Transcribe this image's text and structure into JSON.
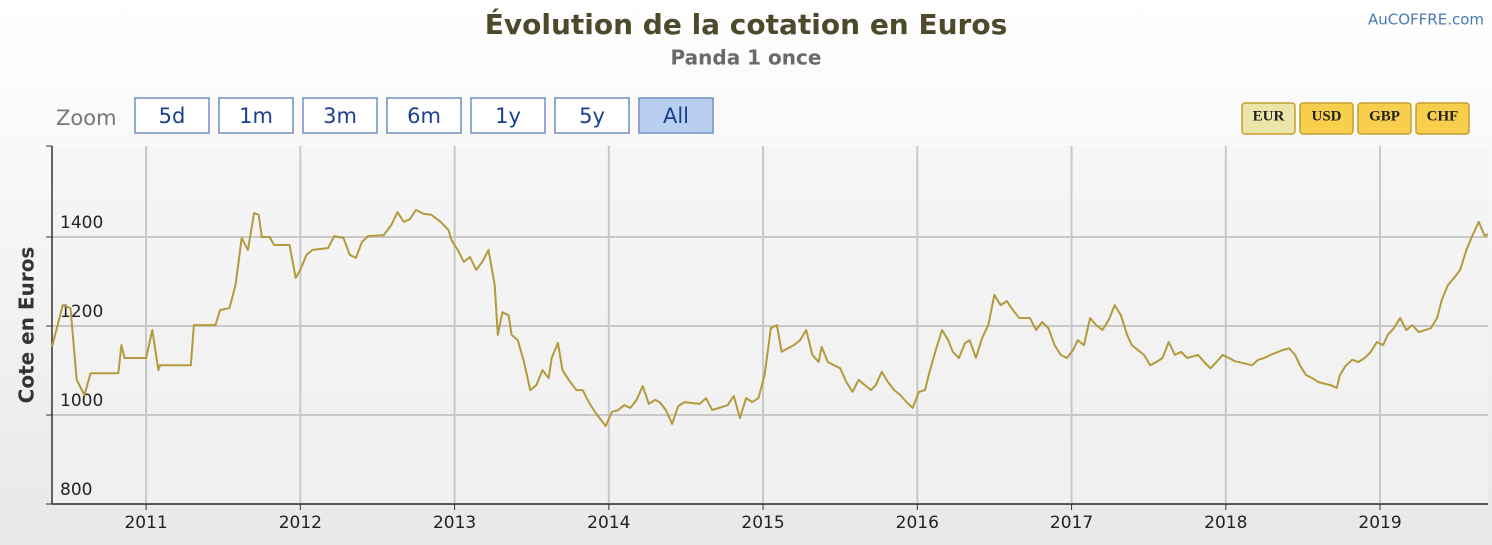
{
  "chart_data": {
    "type": "line",
    "title": "Évolution de la cotation en Euros",
    "subtitle": "Panda 1 once",
    "credit": "AuCOFFRE.com",
    "y_label": "Cote en Euros",
    "color": "#b39a3c",
    "grid": true,
    "range_selector": {
      "label": "Zoom",
      "buttons": [
        "5d",
        "1m",
        "3m",
        "6m",
        "1y",
        "5y",
        "All"
      ],
      "selected": 6
    },
    "currency_buttons": {
      "buttons": [
        "EUR",
        "USD",
        "GBP",
        "CHF"
      ],
      "selected": 0
    },
    "ylim": [
      800,
      1600
    ],
    "yticks": [
      800,
      1000,
      1200,
      1400
    ],
    "xlim": [
      2010.39,
      2019.7
    ],
    "xticks": [
      2011,
      2012,
      2013,
      2014,
      2015,
      2016,
      2017,
      2018,
      2019
    ],
    "x": [
      2010.39,
      2010.46,
      2010.51,
      2010.55,
      2010.6,
      2010.64,
      2010.82,
      2010.84,
      2010.86,
      2011.0,
      2011.04,
      2011.08,
      2011.09,
      2011.29,
      2011.31,
      2011.45,
      2011.48,
      2011.54,
      2011.58,
      2011.62,
      2011.66,
      2011.7,
      2011.73,
      2011.75,
      2011.8,
      2011.83,
      2011.93,
      2011.97,
      2012.0,
      2012.04,
      2012.08,
      2012.18,
      2012.22,
      2012.28,
      2012.32,
      2012.36,
      2012.4,
      2012.44,
      2012.54,
      2012.59,
      2012.63,
      2012.67,
      2012.71,
      2012.75,
      2012.8,
      2012.85,
      2012.91,
      2012.96,
      2012.98,
      2013.02,
      2013.06,
      2013.1,
      2013.14,
      2013.18,
      2013.22,
      2013.26,
      2013.28,
      2013.31,
      2013.35,
      2013.37,
      2013.41,
      2013.45,
      2013.49,
      2013.53,
      2013.57,
      2013.61,
      2013.63,
      2013.67,
      2013.7,
      2013.74,
      2013.79,
      2013.83,
      2013.87,
      2013.91,
      2013.94,
      2013.98,
      2014.02,
      2014.06,
      2014.1,
      2014.14,
      2014.18,
      2014.22,
      2014.26,
      2014.3,
      2014.33,
      2014.37,
      2014.41,
      2014.45,
      2014.49,
      2014.59,
      2014.63,
      2014.67,
      2014.77,
      2014.81,
      2014.85,
      2014.89,
      2014.93,
      2014.97,
      2015.01,
      2015.05,
      2015.09,
      2015.12,
      2015.2,
      2015.24,
      2015.28,
      2015.32,
      2015.36,
      2015.38,
      2015.42,
      2015.5,
      2015.54,
      2015.58,
      2015.62,
      2015.66,
      2015.7,
      2015.73,
      2015.77,
      2015.81,
      2015.85,
      2015.89,
      2015.93,
      2015.97,
      2016.01,
      2016.05,
      2016.08,
      2016.12,
      2016.16,
      2016.2,
      2016.23,
      2016.27,
      2016.31,
      2016.34,
      2016.38,
      2016.42,
      2016.46,
      2016.5,
      2016.54,
      2016.58,
      2016.62,
      2016.66,
      2016.73,
      2016.77,
      2016.81,
      2016.85,
      2016.89,
      2016.93,
      2016.97,
      2017.01,
      2017.04,
      2017.08,
      2017.12,
      2017.16,
      2017.2,
      2017.24,
      2017.28,
      2017.32,
      2017.36,
      2017.39,
      2017.47,
      2017.51,
      2017.55,
      2017.59,
      2017.63,
      2017.67,
      2017.71,
      2017.75,
      2017.82,
      2017.86,
      2017.9,
      2017.94,
      2017.98,
      2018.02,
      2018.06,
      2018.17,
      2018.21,
      2018.25,
      2018.29,
      2018.37,
      2018.41,
      2018.45,
      2018.48,
      2018.52,
      2018.56,
      2018.6,
      2018.68,
      2018.72,
      2018.74,
      2018.78,
      2018.82,
      2018.86,
      2018.9,
      2018.94,
      2018.98,
      2019.02,
      2019.05,
      2019.09,
      2019.13,
      2019.17,
      2019.21,
      2019.25,
      2019.33,
      2019.37,
      2019.4,
      2019.44,
      2019.48,
      2019.52,
      2019.56,
      2019.6,
      2019.64,
      2019.68,
      2019.7
    ],
    "values": [
      1153,
      1247,
      1240,
      1079,
      1045,
      1094,
      1094,
      1157,
      1128,
      1128,
      1191,
      1101,
      1112,
      1112,
      1202,
      1202,
      1236,
      1240,
      1292,
      1398,
      1371,
      1454,
      1450,
      1400,
      1400,
      1382,
      1382,
      1308,
      1326,
      1360,
      1371,
      1375,
      1402,
      1398,
      1360,
      1353,
      1389,
      1402,
      1404,
      1427,
      1456,
      1434,
      1440,
      1461,
      1452,
      1450,
      1434,
      1416,
      1393,
      1371,
      1344,
      1355,
      1326,
      1344,
      1371,
      1292,
      1180,
      1231,
      1224,
      1180,
      1168,
      1119,
      1056,
      1067,
      1101,
      1083,
      1128,
      1162,
      1101,
      1079,
      1056,
      1056,
      1029,
      1007,
      993,
      975,
      1007,
      1011,
      1022,
      1016,
      1034,
      1065,
      1025,
      1034,
      1029,
      1011,
      980,
      1020,
      1029,
      1025,
      1038,
      1011,
      1022,
      1043,
      993,
      1038,
      1029,
      1038,
      1090,
      1195,
      1202,
      1142,
      1157,
      1168,
      1191,
      1135,
      1119,
      1153,
      1119,
      1105,
      1074,
      1052,
      1079,
      1067,
      1056,
      1067,
      1097,
      1074,
      1056,
      1045,
      1029,
      1016,
      1052,
      1056,
      1097,
      1146,
      1191,
      1168,
      1142,
      1128,
      1162,
      1168,
      1128,
      1173,
      1202,
      1270,
      1247,
      1256,
      1236,
      1218,
      1218,
      1191,
      1209,
      1195,
      1157,
      1135,
      1128,
      1146,
      1168,
      1157,
      1218,
      1202,
      1191,
      1213,
      1247,
      1224,
      1180,
      1157,
      1135,
      1112,
      1119,
      1128,
      1164,
      1135,
      1142,
      1128,
      1135,
      1119,
      1105,
      1119,
      1135,
      1128,
      1121,
      1112,
      1124,
      1128,
      1135,
      1146,
      1150,
      1135,
      1112,
      1090,
      1083,
      1074,
      1067,
      1061,
      1090,
      1112,
      1124,
      1119,
      1128,
      1142,
      1164,
      1157,
      1180,
      1195,
      1218,
      1191,
      1202,
      1186,
      1195,
      1218,
      1258,
      1292,
      1308,
      1326,
      1371,
      1404,
      1434,
      1402,
      1407
    ]
  }
}
